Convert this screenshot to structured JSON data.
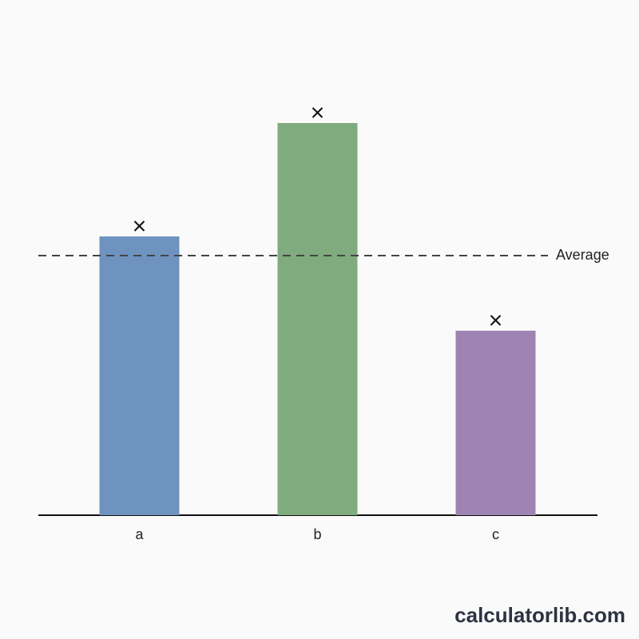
{
  "chart_data": {
    "type": "bar",
    "categories": [
      "a",
      "b",
      "c"
    ],
    "values": [
      3.49,
      4.91,
      2.31
    ],
    "colors": [
      "#6e93bf",
      "#80ab7e",
      "#9e84b2"
    ],
    "ylim": [
      0,
      5.5
    ],
    "average": {
      "value": 3.25,
      "label": "Average"
    }
  },
  "watermark": "calculatorlib.com"
}
